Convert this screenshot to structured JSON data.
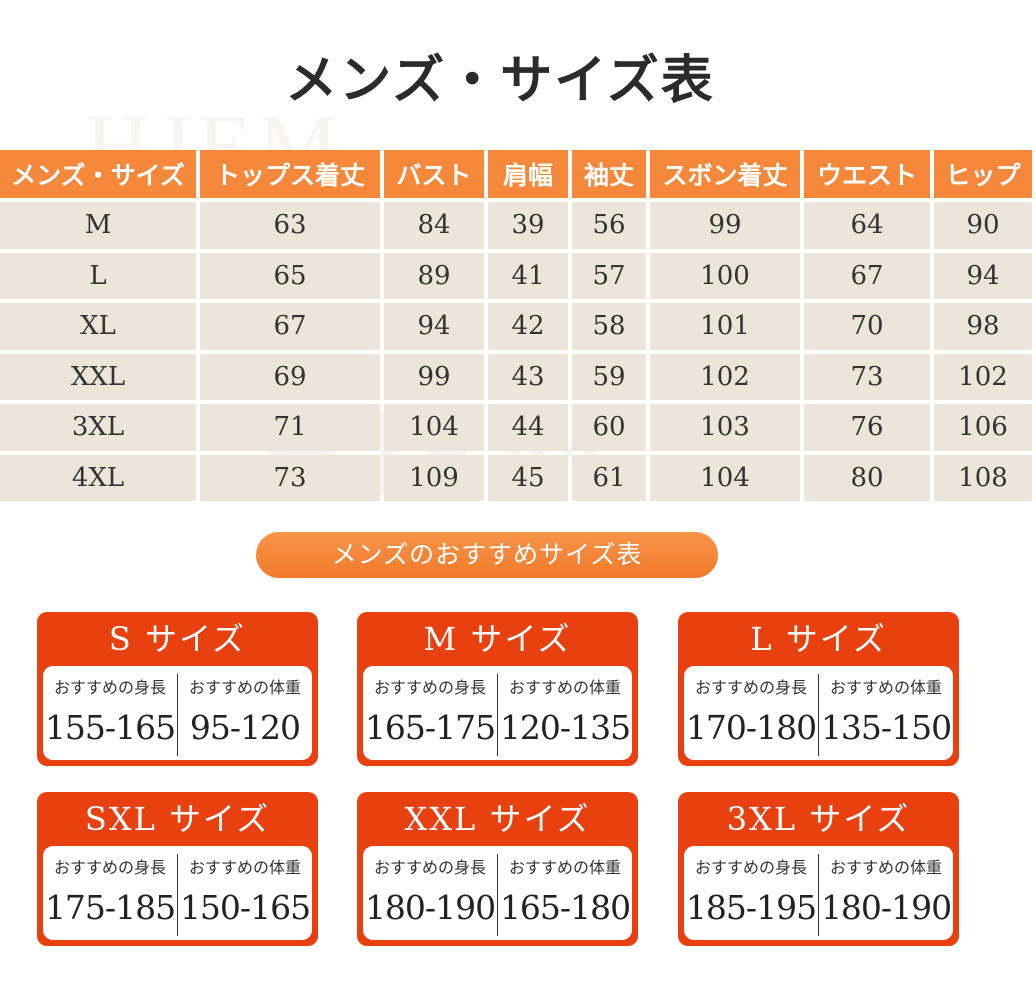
{
  "title": "メンズ・サイズ表",
  "watermark": "HJEM",
  "size_table": {
    "headers": [
      "メンズ・サイズ",
      "トップス着丈",
      "バスト",
      "肩幅",
      "袖丈",
      "スボン着丈",
      "ウエスト",
      "ヒップ"
    ],
    "rows": [
      [
        "M",
        "63",
        "84",
        "39",
        "56",
        "99",
        "64",
        "90"
      ],
      [
        "L",
        "65",
        "89",
        "41",
        "57",
        "100",
        "67",
        "94"
      ],
      [
        "XL",
        "67",
        "94",
        "42",
        "58",
        "101",
        "70",
        "98"
      ],
      [
        "XXL",
        "69",
        "99",
        "43",
        "59",
        "102",
        "73",
        "102"
      ],
      [
        "3XL",
        "71",
        "104",
        "44",
        "60",
        "103",
        "76",
        "106"
      ],
      [
        "4XL",
        "73",
        "109",
        "45",
        "61",
        "104",
        "80",
        "108"
      ]
    ]
  },
  "recommend_title": "メンズのおすすめサイズ表",
  "cards": [
    {
      "title": "S サイズ",
      "height_label": "おすすめの身長",
      "weight_label": "おすすめの体重",
      "height": "155-165",
      "weight": "95-120"
    },
    {
      "title": "M サイズ",
      "height_label": "おすすめの身長",
      "weight_label": "おすすめの体重",
      "height": "165-175",
      "weight": "120-135"
    },
    {
      "title": "L サイズ",
      "height_label": "おすすめの身長",
      "weight_label": "おすすめの体重",
      "height": "170-180",
      "weight": "135-150"
    },
    {
      "title": "SXL サイズ",
      "height_label": "おすすめの身長",
      "weight_label": "おすすめの体重",
      "height": "175-185",
      "weight": "150-165"
    },
    {
      "title": "XXL サイズ",
      "height_label": "おすすめの身長",
      "weight_label": "おすすめの体重",
      "height": "180-190",
      "weight": "165-180"
    },
    {
      "title": "3XL サイズ",
      "height_label": "おすすめの身長",
      "weight_label": "おすすめの体重",
      "height": "185-195",
      "weight": "180-190"
    }
  ],
  "colors": {
    "header_orange": "#f5883a",
    "row_beige": "#ede5da",
    "card_red": "#e8400f"
  }
}
